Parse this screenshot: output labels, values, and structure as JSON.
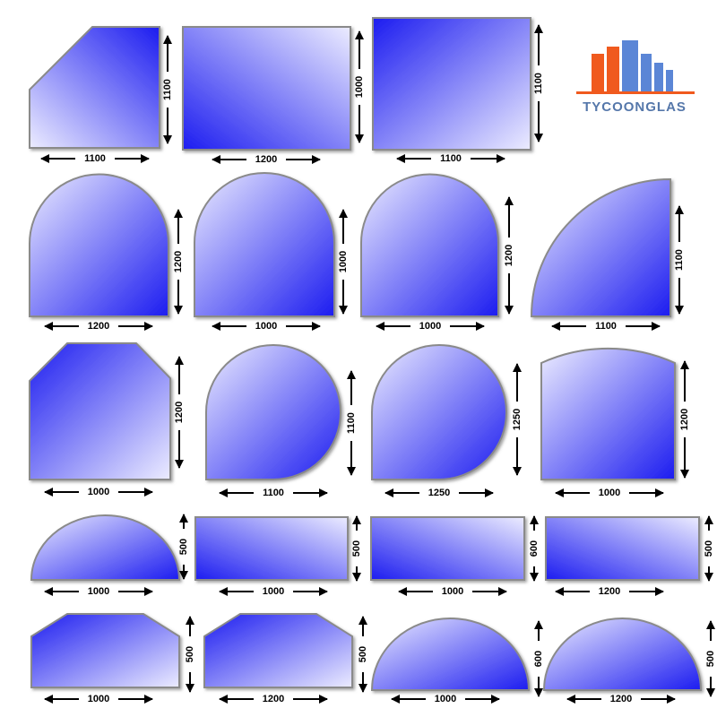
{
  "logo": {
    "text": "TYCOONGLAS"
  },
  "items": [
    {
      "width": 1100,
      "height": 1100
    },
    {
      "width": 1200,
      "height": 1000
    },
    {
      "width": 1100,
      "height": 1100
    },
    {
      "width": 1200,
      "height": 1200
    },
    {
      "width": 1000,
      "height": 1000
    },
    {
      "width": 1000,
      "height": 1200
    },
    {
      "width": 1100,
      "height": 1100
    },
    {
      "width": 1000,
      "height": 1200
    },
    {
      "width": 1100,
      "height": 1100
    },
    {
      "width": 1250,
      "height": 1250
    },
    {
      "width": 1000,
      "height": 1200
    },
    {
      "width": 1000,
      "height": 500
    },
    {
      "width": 1000,
      "height": 500
    },
    {
      "width": 1000,
      "height": 600
    },
    {
      "width": 1200,
      "height": 500
    },
    {
      "width": 1000,
      "height": 500
    },
    {
      "width": 1200,
      "height": 500
    },
    {
      "width": 1000,
      "height": 600
    },
    {
      "width": 1200,
      "height": 500
    }
  ]
}
